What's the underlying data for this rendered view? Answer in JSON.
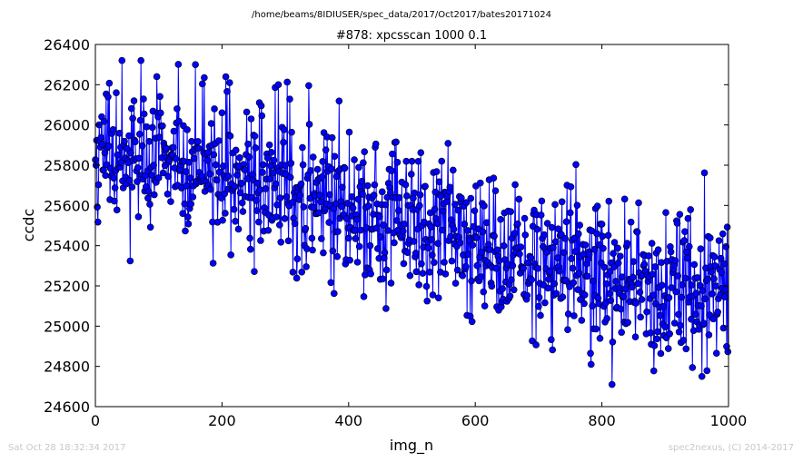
{
  "footer": {
    "timestamp": "Sat Oct 28 18:32:34 2017",
    "credit": "spec2nexus, (C) 2014-2017"
  },
  "colors": {
    "series": "#0000ff",
    "marker_edge": "#000000"
  },
  "chart_data": {
    "type": "line",
    "title": "/home/beams/8IDIUSER/spec_data/2017/Oct2017/bates20171024",
    "subtitle": "#878: xpcsscan 1000 0.1",
    "xlabel": "img_n",
    "ylabel": "ccdc",
    "xlim": [
      0,
      1000
    ],
    "ylim": [
      24600,
      26400
    ],
    "xticks": [
      0,
      200,
      400,
      600,
      800,
      1000
    ],
    "yticks": [
      24600,
      24800,
      25000,
      25200,
      25400,
      25600,
      25800,
      26000,
      26200,
      26400
    ],
    "grid": false,
    "legend": "none",
    "marker": "circle",
    "n_points": 1000,
    "trend": {
      "x": [
        0,
        100,
        200,
        300,
        400,
        500,
        600,
        700,
        800,
        900,
        1000
      ],
      "y": [
        25870,
        25840,
        25790,
        25680,
        25610,
        25510,
        25400,
        25310,
        25250,
        25200,
        25180
      ]
    },
    "noise_std": 190,
    "range_observed": {
      "min": 24710,
      "max": 26320
    },
    "notable_points": [
      {
        "x": 42,
        "y": 26320
      },
      {
        "x": 97,
        "y": 26240
      },
      {
        "x": 212,
        "y": 26210
      },
      {
        "x": 289,
        "y": 26200
      },
      {
        "x": 958,
        "y": 24750
      },
      {
        "x": 816,
        "y": 24710
      },
      {
        "x": 783,
        "y": 24810
      }
    ]
  }
}
